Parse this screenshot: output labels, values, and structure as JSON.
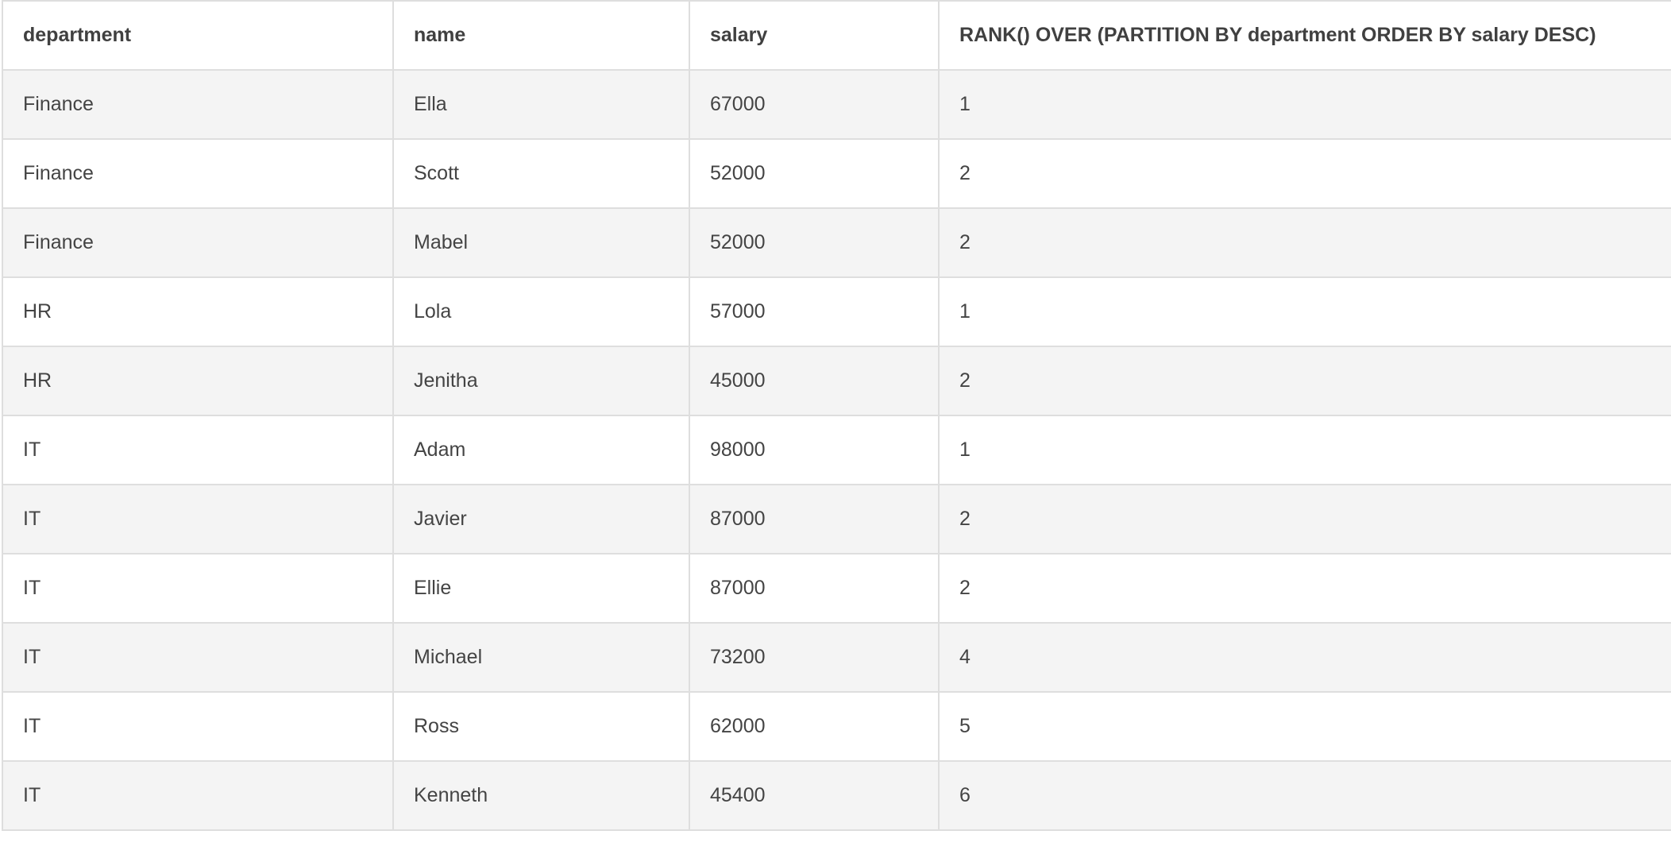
{
  "table": {
    "columns": [
      "department",
      "name",
      "salary",
      "RANK() OVER (PARTITION BY department ORDER BY salary DESC)"
    ],
    "rows": [
      [
        "Finance",
        "Ella",
        "67000",
        "1"
      ],
      [
        "Finance",
        "Scott",
        "52000",
        "2"
      ],
      [
        "Finance",
        "Mabel",
        "52000",
        "2"
      ],
      [
        "HR",
        "Lola",
        "57000",
        "1"
      ],
      [
        "HR",
        "Jenitha",
        "45000",
        "2"
      ],
      [
        "IT",
        "Adam",
        "98000",
        "1"
      ],
      [
        "IT",
        "Javier",
        "87000",
        "2"
      ],
      [
        "IT",
        "Ellie",
        "87000",
        "2"
      ],
      [
        "IT",
        "Michael",
        "73200",
        "4"
      ],
      [
        "IT",
        "Ross",
        "62000",
        "5"
      ],
      [
        "IT",
        "Kenneth",
        "45400",
        "6"
      ]
    ]
  }
}
